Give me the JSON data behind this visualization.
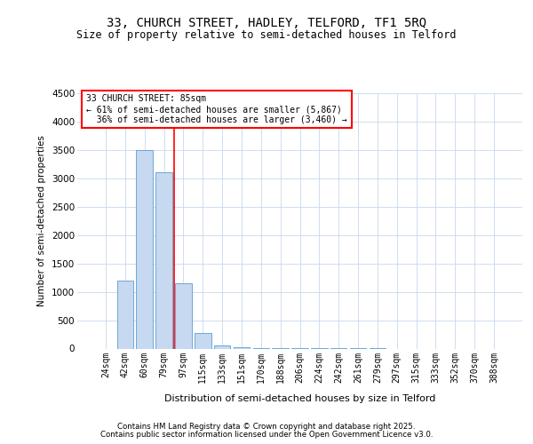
{
  "title1": "33, CHURCH STREET, HADLEY, TELFORD, TF1 5RQ",
  "title2": "Size of property relative to semi-detached houses in Telford",
  "xlabel": "Distribution of semi-detached houses by size in Telford",
  "ylabel": "Number of semi-detached properties",
  "categories": [
    "24sqm",
    "42sqm",
    "60sqm",
    "79sqm",
    "97sqm",
    "115sqm",
    "133sqm",
    "151sqm",
    "170sqm",
    "188sqm",
    "206sqm",
    "224sqm",
    "242sqm",
    "261sqm",
    "279sqm",
    "297sqm",
    "315sqm",
    "333sqm",
    "352sqm",
    "370sqm",
    "388sqm"
  ],
  "values": [
    0,
    1200,
    3500,
    3100,
    1150,
    280,
    50,
    20,
    10,
    5,
    3,
    2,
    1,
    1,
    1,
    0,
    0,
    0,
    0,
    0,
    0
  ],
  "bar_color": "#c6d9f0",
  "bar_edge_color": "#5b9bd5",
  "property_line_x": 3.5,
  "annotation_line1": "33 CHURCH STREET: 85sqm",
  "annotation_line2": "← 61% of semi-detached houses are smaller (5,867)",
  "annotation_line3": "  36% of semi-detached houses are larger (3,460) →",
  "ylim": [
    0,
    4500
  ],
  "yticks": [
    0,
    500,
    1000,
    1500,
    2000,
    2500,
    3000,
    3500,
    4000,
    4500
  ],
  "footer1": "Contains HM Land Registry data © Crown copyright and database right 2025.",
  "footer2": "Contains public sector information licensed under the Open Government Licence v3.0.",
  "bg_color": "#ffffff",
  "grid_color": "#c8d8ec"
}
